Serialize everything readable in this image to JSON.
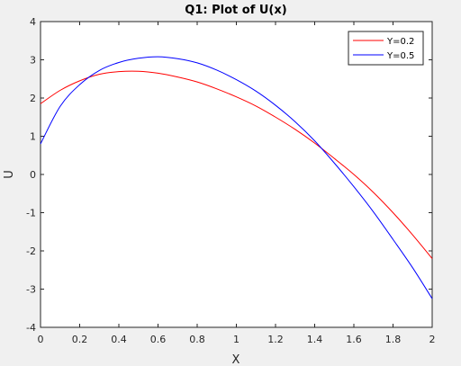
{
  "chart_data": {
    "type": "line",
    "title": "Q1: Plot of U(x)",
    "xlabel": "X",
    "ylabel": "U",
    "xlim": [
      0,
      2
    ],
    "ylim": [
      -4,
      4
    ],
    "xticks": [
      "0",
      "0.2",
      "0.4",
      "0.6",
      "0.8",
      "1",
      "1.2",
      "1.4",
      "1.6",
      "1.8",
      "2"
    ],
    "yticks": [
      "-4",
      "-3",
      "-2",
      "-1",
      "0",
      "1",
      "2",
      "3",
      "4"
    ],
    "grid": false,
    "legend_position": "top-right",
    "series": [
      {
        "name": "Y=0.2",
        "color": "#ff0000",
        "x": [
          0,
          0.1,
          0.2,
          0.3,
          0.4,
          0.5,
          0.6,
          0.7,
          0.8,
          0.9,
          1.0,
          1.1,
          1.2,
          1.3,
          1.4,
          1.5,
          1.6,
          1.7,
          1.8,
          1.9,
          2.0
        ],
        "y": [
          1.85,
          2.2,
          2.45,
          2.62,
          2.69,
          2.7,
          2.65,
          2.55,
          2.42,
          2.24,
          2.03,
          1.79,
          1.5,
          1.18,
          0.82,
          0.42,
          0.0,
          -0.47,
          -1.0,
          -1.58,
          -2.2
        ]
      },
      {
        "name": "Y=0.5",
        "color": "#0000ff",
        "x": [
          0,
          0.1,
          0.2,
          0.3,
          0.4,
          0.5,
          0.6,
          0.7,
          0.8,
          0.9,
          1.0,
          1.1,
          1.2,
          1.3,
          1.4,
          1.5,
          1.6,
          1.7,
          1.8,
          1.9,
          2.0
        ],
        "y": [
          0.8,
          1.78,
          2.35,
          2.72,
          2.93,
          3.04,
          3.08,
          3.03,
          2.92,
          2.73,
          2.48,
          2.18,
          1.81,
          1.38,
          0.88,
          0.3,
          -0.32,
          -0.98,
          -1.7,
          -2.44,
          -3.25
        ]
      }
    ]
  }
}
